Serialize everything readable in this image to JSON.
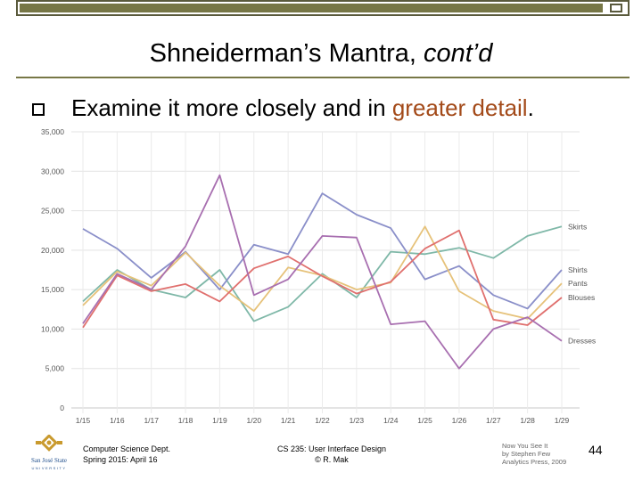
{
  "slide": {
    "title_main": "Shneiderman’s Mantra, ",
    "title_italic": "cont’d",
    "bullet_prefix": "Examine it more closely and in ",
    "bullet_highlight": "greater detail",
    "bullet_suffix": ".",
    "footer_left_line1": "Computer Science Dept.",
    "footer_left_line2": "Spring 2015: April 16",
    "footer_center_line1": "CS 235: User Interface Design",
    "footer_center_line2": "© R. Mak",
    "book_line1": "Now You See It",
    "book_line2": "by Stephen Few",
    "book_line3": "Analytics Press, 2009",
    "page_number": "44",
    "logo_text_line1": "San José State",
    "logo_text_line2": "UNIVERSITY"
  },
  "colors": {
    "frame": "#777746",
    "accent_text": "#a34a19",
    "logo_gold": "#c99a2e",
    "logo_blue": "#1f4e8c"
  },
  "chart_data": {
    "type": "line",
    "title": "",
    "xlabel": "",
    "ylabel": "",
    "categories": [
      "1/15",
      "1/16",
      "1/17",
      "1/18",
      "1/19",
      "1/20",
      "1/21",
      "1/22",
      "1/23",
      "1/24",
      "1/25",
      "1/26",
      "1/27",
      "1/28",
      "1/29"
    ],
    "y_ticks": [
      0,
      5000,
      10000,
      15000,
      20000,
      25000,
      30000,
      35000
    ],
    "y_tick_labels": [
      "0",
      "5,000",
      "10,000",
      "15,000",
      "20,000",
      "25,000",
      "30,000",
      "35,000"
    ],
    "ylim": [
      0,
      35000
    ],
    "grid": true,
    "series": [
      {
        "name": "Skirts",
        "color": "#7fb8a8",
        "values": [
          13500,
          17500,
          15000,
          14000,
          17500,
          11000,
          12800,
          17000,
          14000,
          19800,
          19500,
          20300,
          19000,
          21800,
          23000
        ]
      },
      {
        "name": "Shirts",
        "color": "#8a8fc9",
        "values": [
          22700,
          20200,
          16500,
          19800,
          15000,
          20700,
          19500,
          27200,
          24500,
          22800,
          16300,
          18000,
          14300,
          12600,
          17500
        ]
      },
      {
        "name": "Pants",
        "color": "#e6c27a",
        "values": [
          13000,
          17300,
          15500,
          19700,
          15500,
          12300,
          17800,
          16800,
          15000,
          15900,
          23000,
          14800,
          12300,
          11300,
          15800
        ]
      },
      {
        "name": "Blouses",
        "color": "#e0706e",
        "values": [
          10200,
          16800,
          14800,
          15700,
          13500,
          17700,
          19200,
          16700,
          14500,
          16000,
          20200,
          22500,
          11200,
          10500,
          14000
        ]
      },
      {
        "name": "Dresses",
        "color": "#a86fb0",
        "values": [
          10700,
          17000,
          15000,
          20500,
          29500,
          14300,
          16300,
          21800,
          21600,
          10600,
          11000,
          5000,
          10000,
          11500,
          8500
        ]
      }
    ]
  }
}
